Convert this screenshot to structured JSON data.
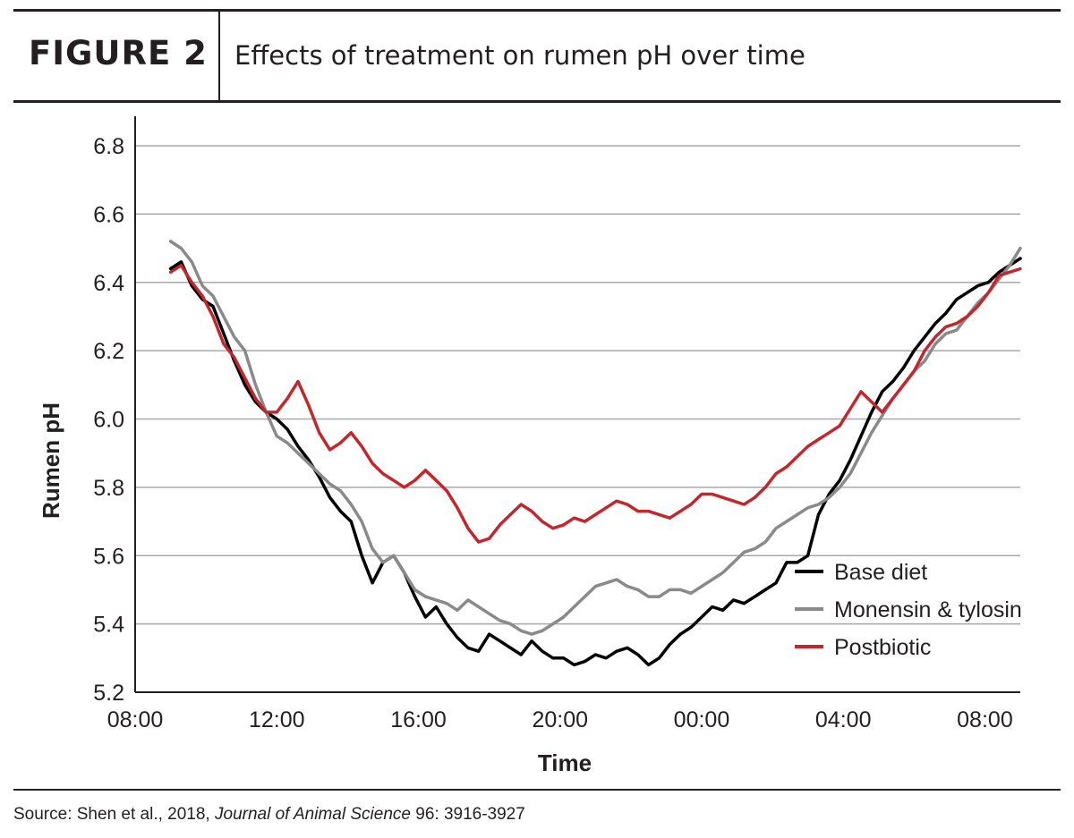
{
  "header": {
    "figure_label": "FIGURE 2",
    "title": "Effects of treatment on rumen pH over time"
  },
  "source": {
    "prefix": "Source: Shen et al., 2018, ",
    "journal": "Journal of Animal Science",
    "suffix": " 96: 3916-3927"
  },
  "chart_data": {
    "type": "line",
    "xlabel": "Time",
    "ylabel": "Rumen pH",
    "ylim": [
      5.2,
      6.8
    ],
    "yticks": [
      5.2,
      5.4,
      5.6,
      5.8,
      6.0,
      6.2,
      6.4,
      6.6,
      6.8
    ],
    "xlim": [
      8,
      33
    ],
    "xticks": [
      {
        "value": 8,
        "label": "08:00"
      },
      {
        "value": 12,
        "label": "12:00"
      },
      {
        "value": 16,
        "label": "16:00"
      },
      {
        "value": 20,
        "label": "20:00"
      },
      {
        "value": 24,
        "label": "00:00"
      },
      {
        "value": 28,
        "label": "04:00"
      },
      {
        "value": 32,
        "label": "08:00"
      }
    ],
    "grid": "horizontal",
    "legend_position": "bottom-right",
    "series": [
      {
        "name": "Base diet",
        "color": "#000000",
        "x": [
          9.0,
          9.3,
          9.6,
          9.9,
          10.2,
          10.5,
          10.8,
          11.1,
          11.4,
          11.7,
          12.0,
          12.3,
          12.6,
          12.9,
          13.2,
          13.5,
          13.8,
          14.1,
          14.4,
          14.7,
          15.0,
          15.3,
          15.6,
          15.9,
          16.2,
          16.5,
          16.8,
          17.1,
          17.4,
          17.7,
          18.0,
          18.3,
          18.6,
          18.9,
          19.2,
          19.5,
          19.8,
          20.1,
          20.4,
          20.7,
          21.0,
          21.3,
          21.6,
          21.9,
          22.2,
          22.5,
          22.8,
          23.1,
          23.4,
          23.7,
          24.0,
          24.3,
          24.6,
          24.9,
          25.2,
          25.5,
          25.8,
          26.1,
          26.4,
          26.7,
          27.0,
          27.3,
          27.6,
          27.9,
          28.2,
          28.5,
          28.8,
          29.1,
          29.4,
          29.7,
          30.0,
          30.3,
          30.6,
          30.9,
          31.2,
          31.5,
          31.8,
          32.1,
          32.4,
          32.7,
          33.0
        ],
        "values": [
          6.44,
          6.46,
          6.39,
          6.35,
          6.33,
          6.25,
          6.17,
          6.1,
          6.05,
          6.02,
          6.0,
          5.97,
          5.92,
          5.88,
          5.83,
          5.77,
          5.73,
          5.7,
          5.6,
          5.52,
          5.58,
          5.6,
          5.55,
          5.48,
          5.42,
          5.45,
          5.4,
          5.36,
          5.33,
          5.32,
          5.37,
          5.35,
          5.33,
          5.31,
          5.35,
          5.32,
          5.3,
          5.3,
          5.28,
          5.29,
          5.31,
          5.3,
          5.32,
          5.33,
          5.31,
          5.28,
          5.3,
          5.34,
          5.37,
          5.39,
          5.42,
          5.45,
          5.44,
          5.47,
          5.46,
          5.48,
          5.5,
          5.52,
          5.58,
          5.58,
          5.6,
          5.72,
          5.78,
          5.82,
          5.88,
          5.95,
          6.02,
          6.08,
          6.11,
          6.15,
          6.2,
          6.24,
          6.28,
          6.31,
          6.35,
          6.37,
          6.39,
          6.4,
          6.43,
          6.45,
          6.47
        ]
      },
      {
        "name": "Monensin & tylosin",
        "color": "#8a8a8a",
        "x": [
          9.0,
          9.3,
          9.6,
          9.9,
          10.2,
          10.5,
          10.8,
          11.1,
          11.4,
          11.7,
          12.0,
          12.3,
          12.6,
          12.9,
          13.2,
          13.5,
          13.8,
          14.1,
          14.4,
          14.7,
          15.0,
          15.3,
          15.6,
          15.9,
          16.2,
          16.5,
          16.8,
          17.1,
          17.4,
          17.7,
          18.0,
          18.3,
          18.6,
          18.9,
          19.2,
          19.5,
          19.8,
          20.1,
          20.4,
          20.7,
          21.0,
          21.3,
          21.6,
          21.9,
          22.2,
          22.5,
          22.8,
          23.1,
          23.4,
          23.7,
          24.0,
          24.3,
          24.6,
          24.9,
          25.2,
          25.5,
          25.8,
          26.1,
          26.4,
          26.7,
          27.0,
          27.3,
          27.6,
          27.9,
          28.2,
          28.5,
          28.8,
          29.1,
          29.4,
          29.7,
          30.0,
          30.3,
          30.6,
          30.9,
          31.2,
          31.5,
          31.8,
          32.1,
          32.4,
          32.7,
          33.0
        ],
        "values": [
          6.52,
          6.5,
          6.46,
          6.39,
          6.36,
          6.3,
          6.24,
          6.2,
          6.1,
          6.02,
          5.95,
          5.93,
          5.9,
          5.87,
          5.84,
          5.81,
          5.79,
          5.75,
          5.7,
          5.62,
          5.58,
          5.6,
          5.55,
          5.5,
          5.48,
          5.47,
          5.46,
          5.44,
          5.47,
          5.45,
          5.43,
          5.41,
          5.4,
          5.38,
          5.37,
          5.38,
          5.4,
          5.42,
          5.45,
          5.48,
          5.51,
          5.52,
          5.53,
          5.51,
          5.5,
          5.48,
          5.48,
          5.5,
          5.5,
          5.49,
          5.51,
          5.53,
          5.55,
          5.58,
          5.61,
          5.62,
          5.64,
          5.68,
          5.7,
          5.72,
          5.74,
          5.75,
          5.77,
          5.8,
          5.84,
          5.9,
          5.96,
          6.01,
          6.06,
          6.1,
          6.14,
          6.17,
          6.22,
          6.25,
          6.26,
          6.3,
          6.34,
          6.37,
          6.41,
          6.45,
          6.5
        ]
      },
      {
        "name": "Postbiotic",
        "color": "#c1272d",
        "x": [
          9.0,
          9.3,
          9.6,
          9.9,
          10.2,
          10.5,
          10.8,
          11.1,
          11.4,
          11.7,
          12.0,
          12.3,
          12.6,
          12.9,
          13.2,
          13.5,
          13.8,
          14.1,
          14.4,
          14.7,
          15.0,
          15.3,
          15.6,
          15.9,
          16.2,
          16.5,
          16.8,
          17.1,
          17.4,
          17.7,
          18.0,
          18.3,
          18.6,
          18.9,
          19.2,
          19.5,
          19.8,
          20.1,
          20.4,
          20.7,
          21.0,
          21.3,
          21.6,
          21.9,
          22.2,
          22.5,
          22.8,
          23.1,
          23.4,
          23.7,
          24.0,
          24.3,
          24.6,
          24.9,
          25.2,
          25.5,
          25.8,
          26.1,
          26.4,
          26.7,
          27.0,
          27.3,
          27.6,
          27.9,
          28.2,
          28.5,
          28.8,
          29.1,
          29.4,
          29.7,
          30.0,
          30.3,
          30.6,
          30.9,
          31.2,
          31.5,
          31.8,
          32.1,
          32.4,
          32.7,
          33.0
        ],
        "values": [
          6.43,
          6.45,
          6.4,
          6.36,
          6.3,
          6.22,
          6.18,
          6.12,
          6.06,
          6.02,
          6.02,
          6.06,
          6.11,
          6.04,
          5.96,
          5.91,
          5.93,
          5.96,
          5.92,
          5.87,
          5.84,
          5.82,
          5.8,
          5.82,
          5.85,
          5.82,
          5.79,
          5.74,
          5.68,
          5.64,
          5.65,
          5.69,
          5.72,
          5.75,
          5.73,
          5.7,
          5.68,
          5.69,
          5.71,
          5.7,
          5.72,
          5.74,
          5.76,
          5.75,
          5.73,
          5.73,
          5.72,
          5.71,
          5.73,
          5.75,
          5.78,
          5.78,
          5.77,
          5.76,
          5.75,
          5.77,
          5.8,
          5.84,
          5.86,
          5.89,
          5.92,
          5.94,
          5.96,
          5.98,
          6.03,
          6.08,
          6.05,
          6.02,
          6.06,
          6.1,
          6.14,
          6.2,
          6.24,
          6.27,
          6.28,
          6.3,
          6.33,
          6.37,
          6.42,
          6.43,
          6.44
        ]
      }
    ]
  }
}
